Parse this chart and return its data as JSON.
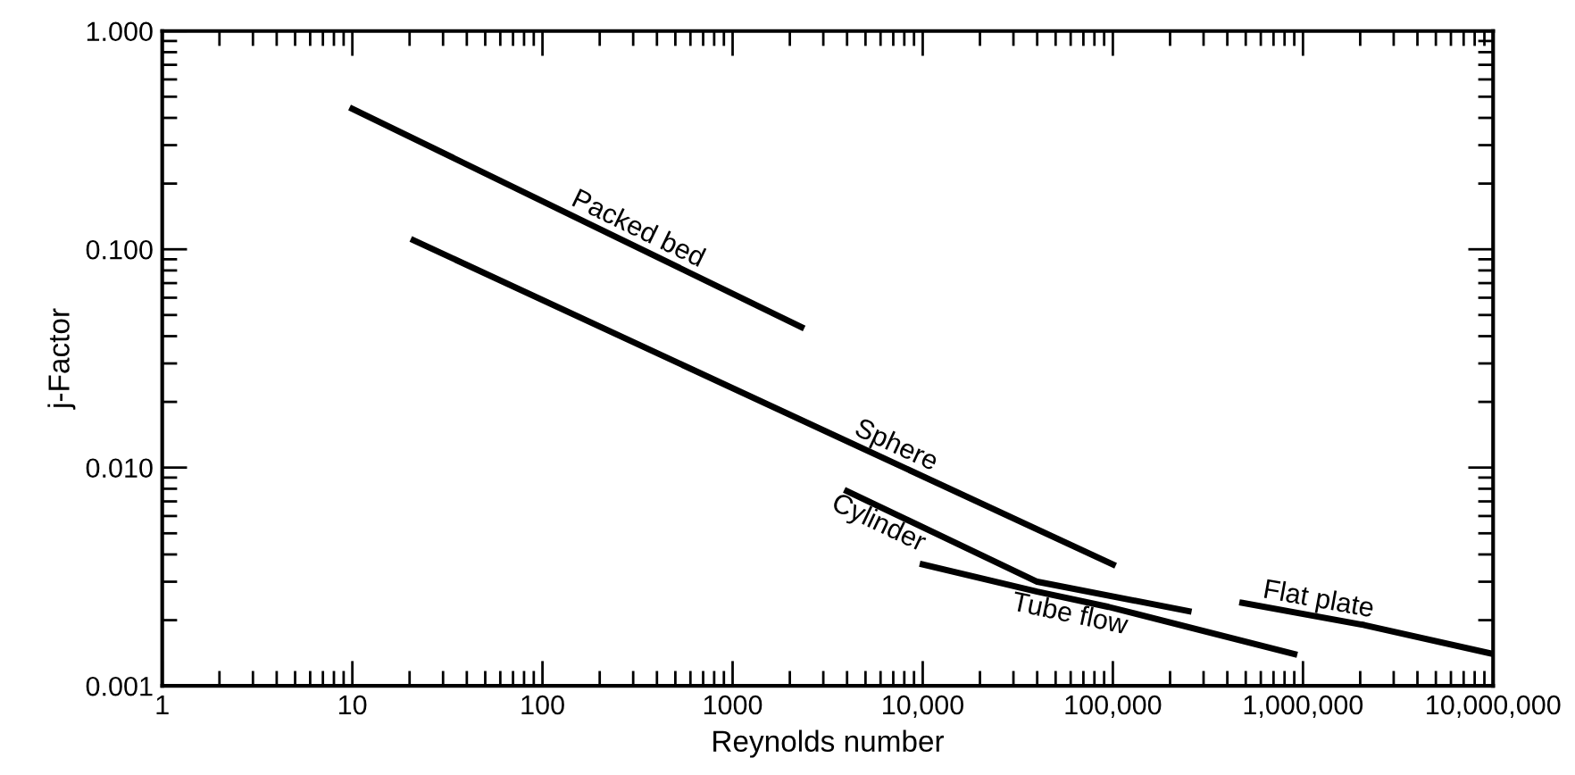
{
  "chart_data": {
    "type": "line",
    "xlabel": "Reynolds number",
    "ylabel": "j-Factor",
    "log": "xy",
    "xlim": [
      1,
      10000000
    ],
    "ylim": [
      0.001,
      1
    ],
    "xticks": [
      1,
      10,
      100,
      1000,
      {
        "value": 10000,
        "label": "10,000"
      },
      {
        "value": 100000,
        "label": "100,000"
      },
      {
        "value": 1000000,
        "label": "1,000,000"
      },
      {
        "value": 10000000,
        "label": "10,000,000"
      }
    ],
    "yticks": [
      {
        "value": 0.001,
        "label": "0.001"
      },
      {
        "value": 0.01,
        "label": "0.010"
      },
      {
        "value": 0.1,
        "label": "0.100"
      },
      {
        "value": 1,
        "label": "1.000"
      }
    ],
    "grid": false,
    "legend": false,
    "marker": "none",
    "line_style": "solid",
    "series": [
      {
        "name": "Packed bed",
        "color": "#000000",
        "x": [
          10,
          2300
        ],
        "values": [
          0.44,
          0.044
        ]
      },
      {
        "name": "Sphere",
        "color": "#000000",
        "x": [
          21,
          100000
        ],
        "values": [
          0.11,
          0.0036
        ]
      },
      {
        "name": "Cylinder",
        "color": "#000000",
        "x": [
          4000,
          40000,
          250000
        ],
        "values": [
          0.0078,
          0.003,
          0.0022
        ]
      },
      {
        "name": "Tube flow",
        "color": "#000000",
        "x": [
          10000,
          40000,
          95000,
          900000
        ],
        "values": [
          0.0036,
          0.0027,
          0.0023,
          0.0014
        ]
      },
      {
        "name": "Flat plate",
        "color": "#000000",
        "x": [
          480000,
          2100000,
          10000000
        ],
        "values": [
          0.0024,
          0.0019,
          0.0014
        ]
      }
    ]
  }
}
